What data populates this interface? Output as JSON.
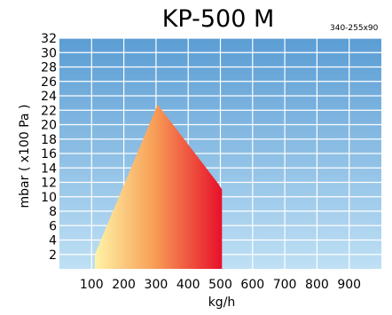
{
  "chart_data": {
    "type": "area",
    "title": "KP-500 M",
    "subtitle": "340-255x90",
    "xlabel": "kg/h",
    "ylabel": "mbar ( x100 Pa )",
    "xlim": [
      0,
      1000
    ],
    "ylim": [
      0,
      32
    ],
    "x_ticks": [
      100,
      200,
      300,
      400,
      500,
      600,
      700,
      800,
      900
    ],
    "y_ticks": [
      2,
      4,
      6,
      8,
      10,
      12,
      14,
      16,
      18,
      20,
      22,
      24,
      26,
      28,
      30,
      32
    ],
    "grid": true,
    "background_colors": {
      "top": "#5b9dd4",
      "bottom": "#bfe0f5"
    },
    "fill_colors": {
      "left": "#fff3a8",
      "mid": "#f7a258",
      "right": "#e8102a"
    },
    "series": [
      {
        "points": [
          {
            "x": 110,
            "y": 0
          },
          {
            "x": 110,
            "y": 2
          },
          {
            "x": 305,
            "y": 22.8
          },
          {
            "x": 490,
            "y": 12
          },
          {
            "x": 505,
            "y": 11
          },
          {
            "x": 505,
            "y": 0
          }
        ]
      }
    ]
  }
}
